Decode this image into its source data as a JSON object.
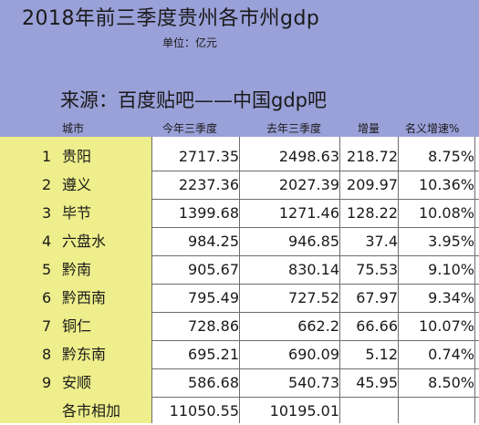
{
  "title": "2018年前三季度贵州各市州gdp",
  "unit": "单位：亿元",
  "source": "来源：百度贴吧——中国gdp吧",
  "columns": [
    "城市",
    "今年三季度",
    "去年三季度",
    "增量",
    "名义增速%"
  ],
  "rows": [
    {
      "rank": "1",
      "city": "贵阳",
      "current": "2717.35",
      "previous": "2498.63",
      "increase": "218.72",
      "growth": "8.75%"
    },
    {
      "rank": "2",
      "city": "遵义",
      "current": "2237.36",
      "previous": "2027.39",
      "increase": "209.97",
      "growth": "10.36%"
    },
    {
      "rank": "3",
      "city": "毕节",
      "current": "1399.68",
      "previous": "1271.46",
      "increase": "128.22",
      "growth": "10.08%"
    },
    {
      "rank": "4",
      "city": "六盘水",
      "current": "984.25",
      "previous": "946.85",
      "increase": "37.4",
      "growth": "3.95%"
    },
    {
      "rank": "5",
      "city": "黔南",
      "current": "905.67",
      "previous": "830.14",
      "increase": "75.53",
      "growth": "9.10%"
    },
    {
      "rank": "6",
      "city": "黔西南",
      "current": "795.49",
      "previous": "727.52",
      "increase": "67.97",
      "growth": "9.34%"
    },
    {
      "rank": "7",
      "city": "铜仁",
      "current": "728.86",
      "previous": "662.2",
      "increase": "66.66",
      "growth": "10.07%"
    },
    {
      "rank": "8",
      "city": "黔东南",
      "current": "695.21",
      "previous": "690.09",
      "increase": "5.12",
      "growth": "0.74%"
    },
    {
      "rank": "9",
      "city": "安顺",
      "current": "586.68",
      "previous": "540.73",
      "increase": "45.95",
      "growth": "8.50%"
    }
  ],
  "total": {
    "label": "各市相加",
    "current": "11050.55",
    "previous": "10195.01"
  },
  "colors": {
    "header_bg": "#9aa0d8",
    "label_bg": "#eeee8c",
    "grid": "#6e6e6e"
  }
}
